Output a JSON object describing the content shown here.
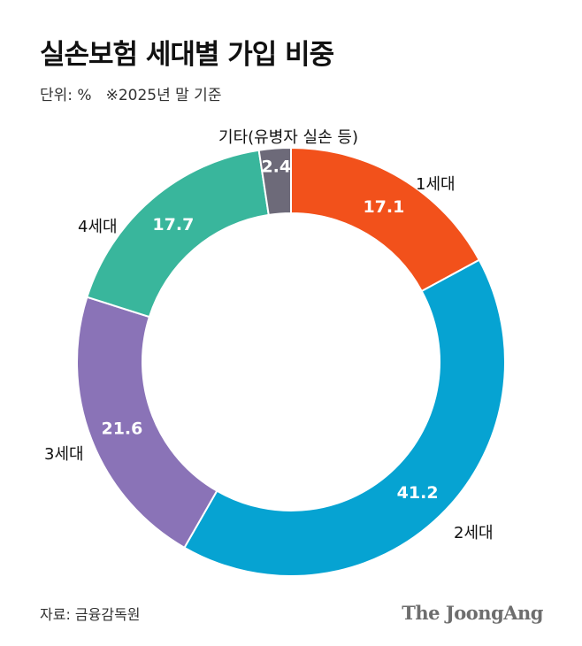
{
  "header": {
    "title": "실손보험 세대별 가입 비중",
    "unit": "단위: %",
    "basis": "※2025년 말 기준"
  },
  "footer": {
    "source": "자료: 금융감독원",
    "brand": "The JoongAng"
  },
  "chart_data": {
    "type": "pie",
    "subtype": "donut",
    "title": "실손보험 세대별 가입 비중",
    "unit": "%",
    "slices": [
      {
        "label": "1세대",
        "value": 17.1,
        "value_label": "17.1",
        "color": "#f2511b"
      },
      {
        "label": "2세대",
        "value": 41.2,
        "value_label": "41.2",
        "color": "#06a3d2"
      },
      {
        "label": "3세대",
        "value": 21.6,
        "value_label": "21.6",
        "color": "#8a73b7"
      },
      {
        "label": "4세대",
        "value": 17.7,
        "value_label": "17.7",
        "color": "#39b69c"
      },
      {
        "label": "기타(유병자 실손 등)",
        "value": 2.4,
        "value_label": "2.4",
        "color": "#6d6a79"
      }
    ]
  }
}
